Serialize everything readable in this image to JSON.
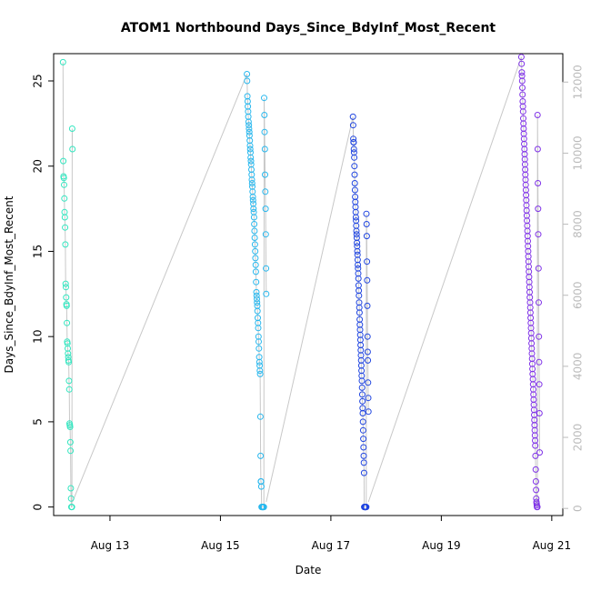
{
  "chart_data": {
    "type": "scatter",
    "title": "ATOM1 Northbound Days_Since_BdyInf_Most_Recent",
    "xlabel": "Date",
    "ylabel": "Days_Since_BdyInf_Most_Recent",
    "x_ticks": [
      "Aug 13",
      "Aug 15",
      "Aug 17",
      "Aug 19",
      "Aug 21"
    ],
    "x_tick_values": [
      13,
      15,
      17,
      19,
      21
    ],
    "y_ticks": [
      0,
      5,
      10,
      15,
      20,
      25
    ],
    "y_right_ticks": [
      0,
      2000,
      4000,
      6000,
      8000,
      10000,
      12000
    ],
    "xlim": [
      11.98,
      21.2
    ],
    "ylim": [
      -0.5,
      26.6
    ],
    "y_right_lim": [
      -200,
      12800
    ],
    "grid": false,
    "colors": {
      "group1": "#33e6c0",
      "group2": "#2ab8ee",
      "group3": "#2146e0",
      "group4": "#8033e8",
      "connector": "#c8c8c8",
      "right_axis": "#bbbbbb"
    },
    "groups": [
      {
        "x_start": 12.15,
        "x_end": 12.32,
        "y": [
          26.1,
          20.3,
          19.4,
          19.3,
          18.9,
          18.1,
          17.3,
          17.0,
          16.4,
          15.4,
          13.1,
          12.9,
          12.3,
          11.9,
          11.8,
          10.8,
          9.7,
          9.6,
          9.3,
          9.0,
          8.8,
          8.6,
          8.5,
          7.4,
          6.9,
          4.9,
          4.8,
          4.7,
          3.8,
          3.3,
          1.1,
          0.5,
          0.0,
          0.0,
          0.0,
          22.2,
          21.0
        ]
      },
      {
        "x_start": 15.48,
        "x_end": 15.83,
        "y": [
          25.4,
          25.0,
          24.1,
          23.8,
          23.5,
          23.2,
          22.9,
          22.6,
          22.4,
          22.2,
          22.0,
          21.8,
          21.5,
          21.2,
          21.0,
          20.8,
          20.5,
          20.3,
          20.1,
          19.8,
          19.5,
          19.2,
          19.0,
          18.8,
          18.5,
          18.2,
          18.0,
          17.8,
          17.5,
          17.3,
          17.0,
          16.6,
          16.2,
          15.8,
          15.4,
          15.0,
          14.6,
          14.2,
          13.8,
          13.2,
          12.6,
          12.4,
          12.2,
          12.0,
          11.8,
          11.5,
          11.1,
          10.8,
          10.5,
          10.0,
          9.7,
          9.3,
          8.8,
          8.5,
          8.3,
          8.0,
          7.8,
          5.3,
          3.0,
          1.5,
          1.5,
          1.2,
          0.0,
          0.0,
          0.0,
          0.0,
          0.0,
          0.0,
          0.0,
          0.0,
          0.0,
          0.0,
          0.0,
          24.0,
          23.0,
          22.0,
          21.0,
          19.5,
          18.5,
          17.5,
          16.0,
          14.0,
          12.5
        ]
      },
      {
        "x_start": 17.4,
        "x_end": 17.68,
        "y": [
          22.9,
          22.4,
          21.6,
          21.4,
          21.4,
          21.0,
          20.8,
          20.5,
          20.0,
          19.5,
          19.0,
          18.6,
          18.2,
          17.9,
          17.6,
          17.3,
          17.0,
          16.8,
          16.5,
          16.2,
          16.0,
          15.8,
          15.5,
          15.3,
          15.0,
          14.8,
          14.5,
          14.2,
          14.0,
          13.7,
          13.4,
          13.0,
          12.7,
          12.4,
          12.0,
          11.7,
          11.4,
          11.0,
          10.7,
          10.4,
          10.1,
          9.8,
          9.5,
          9.2,
          8.9,
          8.6,
          8.3,
          8.0,
          7.7,
          7.4,
          7.0,
          6.6,
          6.2,
          5.8,
          5.5,
          5.0,
          4.5,
          4.0,
          3.5,
          3.0,
          2.6,
          2.0,
          0.0,
          0.0,
          0.0,
          0.0,
          0.0,
          0.0,
          0.0,
          0.0,
          0.0,
          0.0,
          0.0,
          0.0,
          17.2,
          16.6,
          15.9,
          14.4,
          13.3,
          11.8,
          10.0,
          9.1,
          8.6,
          7.3,
          6.4,
          5.6
        ]
      },
      {
        "x_start": 20.45,
        "x_end": 20.78,
        "y": [
          26.4,
          26.0,
          25.5,
          25.3,
          25.0,
          24.6,
          24.2,
          23.8,
          23.5,
          23.2,
          22.8,
          22.5,
          22.2,
          21.9,
          21.6,
          21.3,
          21.0,
          20.7,
          20.4,
          20.1,
          19.8,
          19.5,
          19.2,
          18.9,
          18.6,
          18.3,
          18.0,
          17.7,
          17.4,
          17.1,
          16.8,
          16.5,
          16.2,
          15.9,
          15.6,
          15.3,
          15.0,
          14.7,
          14.4,
          14.1,
          13.8,
          13.5,
          13.2,
          12.9,
          12.6,
          12.3,
          12.0,
          11.7,
          11.4,
          11.1,
          10.8,
          10.5,
          10.2,
          9.9,
          9.6,
          9.3,
          9.0,
          8.7,
          8.4,
          8.1,
          7.8,
          7.5,
          7.2,
          6.9,
          6.6,
          6.3,
          6.0,
          5.7,
          5.4,
          5.1,
          4.8,
          4.5,
          4.2,
          3.9,
          3.6,
          3.0,
          2.2,
          1.5,
          1.0,
          0.5,
          0.3,
          0.2,
          0.1,
          0.0,
          0.0,
          0.0,
          23.0,
          21.0,
          19.0,
          17.5,
          16.0,
          14.0,
          12.0,
          10.0,
          8.5,
          7.2,
          5.5,
          3.2
        ]
      }
    ]
  }
}
